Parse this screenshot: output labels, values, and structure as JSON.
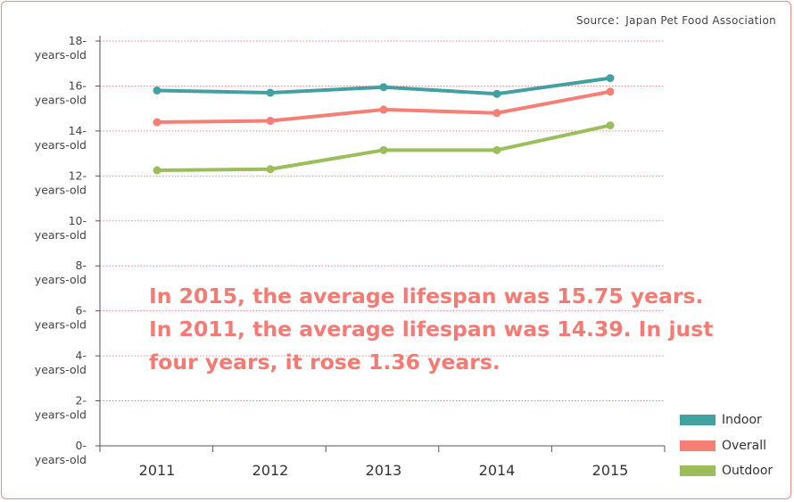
{
  "source": "Source：Japan Pet Food Association",
  "chart_data": {
    "type": "line",
    "categories": [
      "2011",
      "2012",
      "2013",
      "2014",
      "2015"
    ],
    "y_ticks": [
      {
        "value": 0,
        "line1": "0-",
        "line2": "years-old"
      },
      {
        "value": 2,
        "line1": "2-",
        "line2": "years-old"
      },
      {
        "value": 4,
        "line1": "4-",
        "line2": "years-old"
      },
      {
        "value": 6,
        "line1": "6-",
        "line2": "years-old"
      },
      {
        "value": 8,
        "line1": "8-",
        "line2": "years-old"
      },
      {
        "value": 10,
        "line1": "10-",
        "line2": "years-old"
      },
      {
        "value": 12,
        "line1": "12-",
        "line2": "years-old"
      },
      {
        "value": 14,
        "line1": "14-",
        "line2": "years-old"
      },
      {
        "value": 16,
        "line1": "16-",
        "line2": "years-old"
      },
      {
        "value": 18,
        "line1": "18-",
        "line2": "years-old"
      }
    ],
    "ylim": [
      0,
      18
    ],
    "grid": true,
    "legend_position": "bottom-right",
    "series": [
      {
        "name": "Indoor",
        "color": "#44a0a0",
        "values": [
          15.8,
          15.7,
          15.95,
          15.65,
          16.35
        ]
      },
      {
        "name": "Overall",
        "color": "#f57f74",
        "values": [
          14.39,
          14.45,
          14.95,
          14.8,
          15.75
        ]
      },
      {
        "name": "Outdoor",
        "color": "#9cbe5a",
        "values": [
          12.25,
          12.3,
          13.15,
          13.15,
          14.25
        ]
      }
    ],
    "annotation": [
      "In 2015, the average lifespan was 15.75 years.",
      "In 2011, the average lifespan was 14.39. In just",
      "four years, it rose 1.36 years."
    ]
  }
}
